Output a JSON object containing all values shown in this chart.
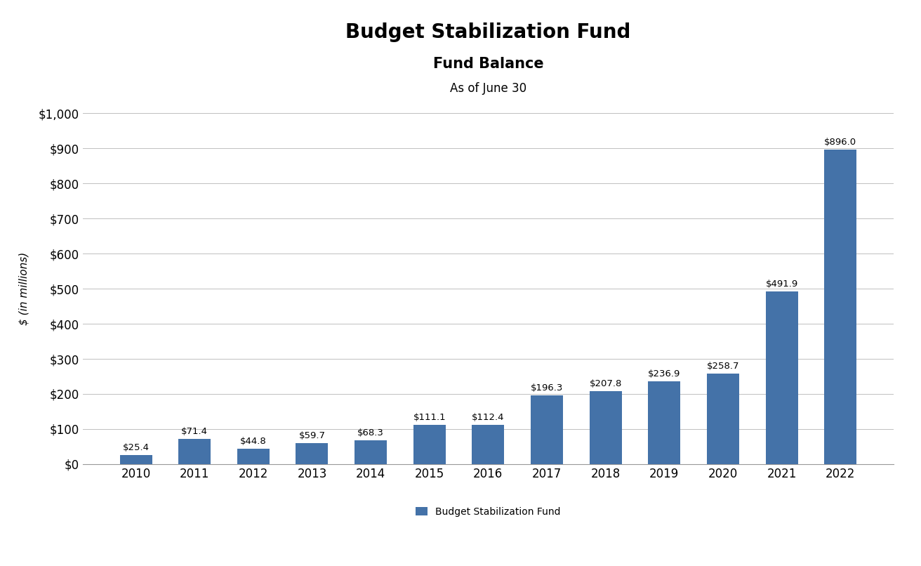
{
  "title": "Budget Stabilization Fund",
  "subtitle1": "Fund Balance",
  "subtitle2": "As of June 30",
  "ylabel": "$ (in millions)",
  "categories": [
    "2010",
    "2011",
    "2012",
    "2013",
    "2014",
    "2015",
    "2016",
    "2017",
    "2018",
    "2019",
    "2020",
    "2021",
    "2022"
  ],
  "values": [
    25.4,
    71.4,
    44.8,
    59.7,
    68.3,
    111.1,
    112.4,
    196.3,
    207.8,
    236.9,
    258.7,
    491.9,
    896.0
  ],
  "bar_color": "#4472a8",
  "ylim": [
    0,
    1000
  ],
  "yticks": [
    0,
    100,
    200,
    300,
    400,
    500,
    600,
    700,
    800,
    900,
    1000
  ],
  "ytick_labels": [
    "$0",
    "$100",
    "$200",
    "$300",
    "$400",
    "$500",
    "$600",
    "$700",
    "$800",
    "$900",
    "$1,000"
  ],
  "legend_label": "Budget Stabilization Fund",
  "background_color": "#ffffff",
  "grid_color": "#c0c0c0",
  "title_fontsize": 20,
  "subtitle1_fontsize": 15,
  "subtitle2_fontsize": 12,
  "bar_label_fontsize": 9.5,
  "axis_label_fontsize": 11,
  "tick_fontsize": 12,
  "legend_fontsize": 10
}
